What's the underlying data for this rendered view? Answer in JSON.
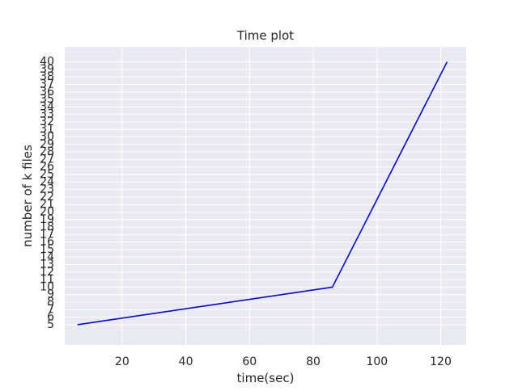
{
  "chart_data": {
    "type": "line",
    "title": "Time plot",
    "xlabel": "time(sec)",
    "ylabel": "number of k files",
    "xlim": [
      2,
      128
    ],
    "ylim": [
      2.3,
      42.0
    ],
    "xticks": [
      20,
      40,
      60,
      80,
      100,
      120
    ],
    "yticks": [
      5,
      6,
      7,
      8,
      9,
      10,
      11,
      12,
      13,
      14,
      15,
      16,
      17,
      18,
      19,
      20,
      21,
      22,
      23,
      24,
      25,
      26,
      27,
      28,
      29,
      30,
      31,
      32,
      33,
      34,
      35,
      36,
      37,
      38,
      39,
      40
    ],
    "grid": true,
    "background_color": "#EAEAF2",
    "grid_color": "#FFFFFF",
    "series": [
      {
        "name": "",
        "color": "#0000FF",
        "x": [
          6,
          86,
          98,
          110,
          116,
          122
        ],
        "y": [
          5,
          10,
          20,
          30,
          35,
          40
        ]
      }
    ]
  }
}
